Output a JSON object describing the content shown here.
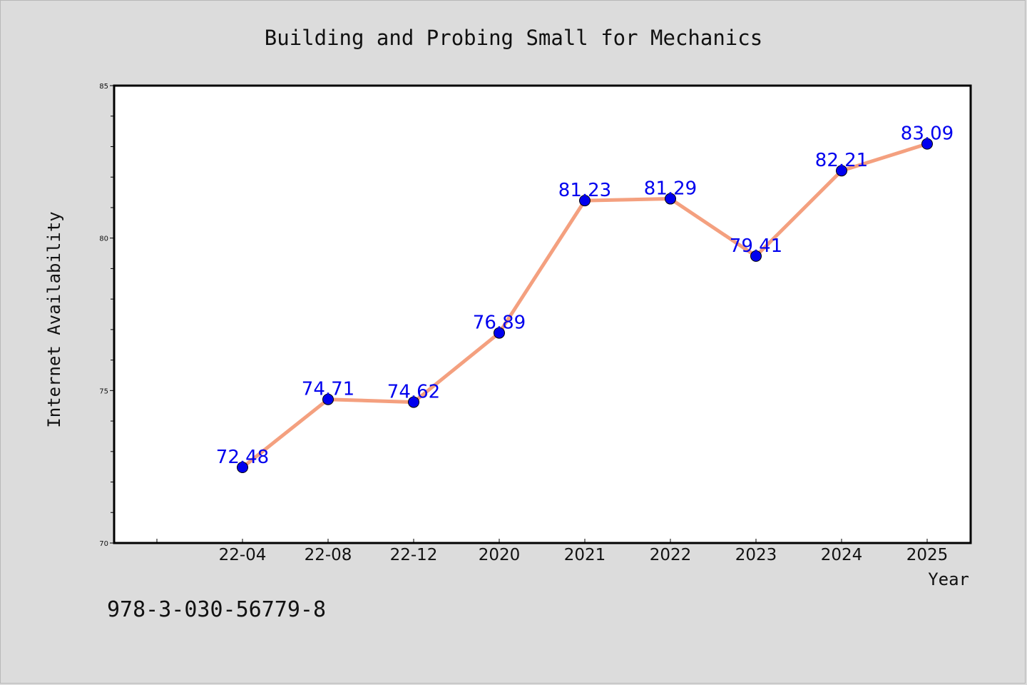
{
  "chart_data": {
    "type": "line",
    "title": "Building and Probing Small for Mechanics",
    "xlabel": "Year",
    "ylabel": "Internet Availability",
    "categories": [
      "22-04",
      "22-08",
      "22-12",
      "2020",
      "2021",
      "2022",
      "2023",
      "2024",
      "2025"
    ],
    "series": [
      {
        "values": [
          72.48,
          74.71,
          74.62,
          76.89,
          81.23,
          81.29,
          79.41,
          82.21,
          83.09
        ],
        "labels": [
          "72.48",
          "74.71",
          "74.62",
          "76.89",
          "81.23",
          "81.29",
          "79.41",
          "82.21",
          "83.09"
        ],
        "line_color": "#f4a07f",
        "marker_color": "#0000ee"
      }
    ],
    "ylim": [
      70,
      85
    ],
    "yticks": [
      "70",
      "75",
      "80",
      "85"
    ],
    "grid": false,
    "legend": "none",
    "label_color": "#0000ee"
  },
  "footer_text": "978-3-030-56779-8"
}
